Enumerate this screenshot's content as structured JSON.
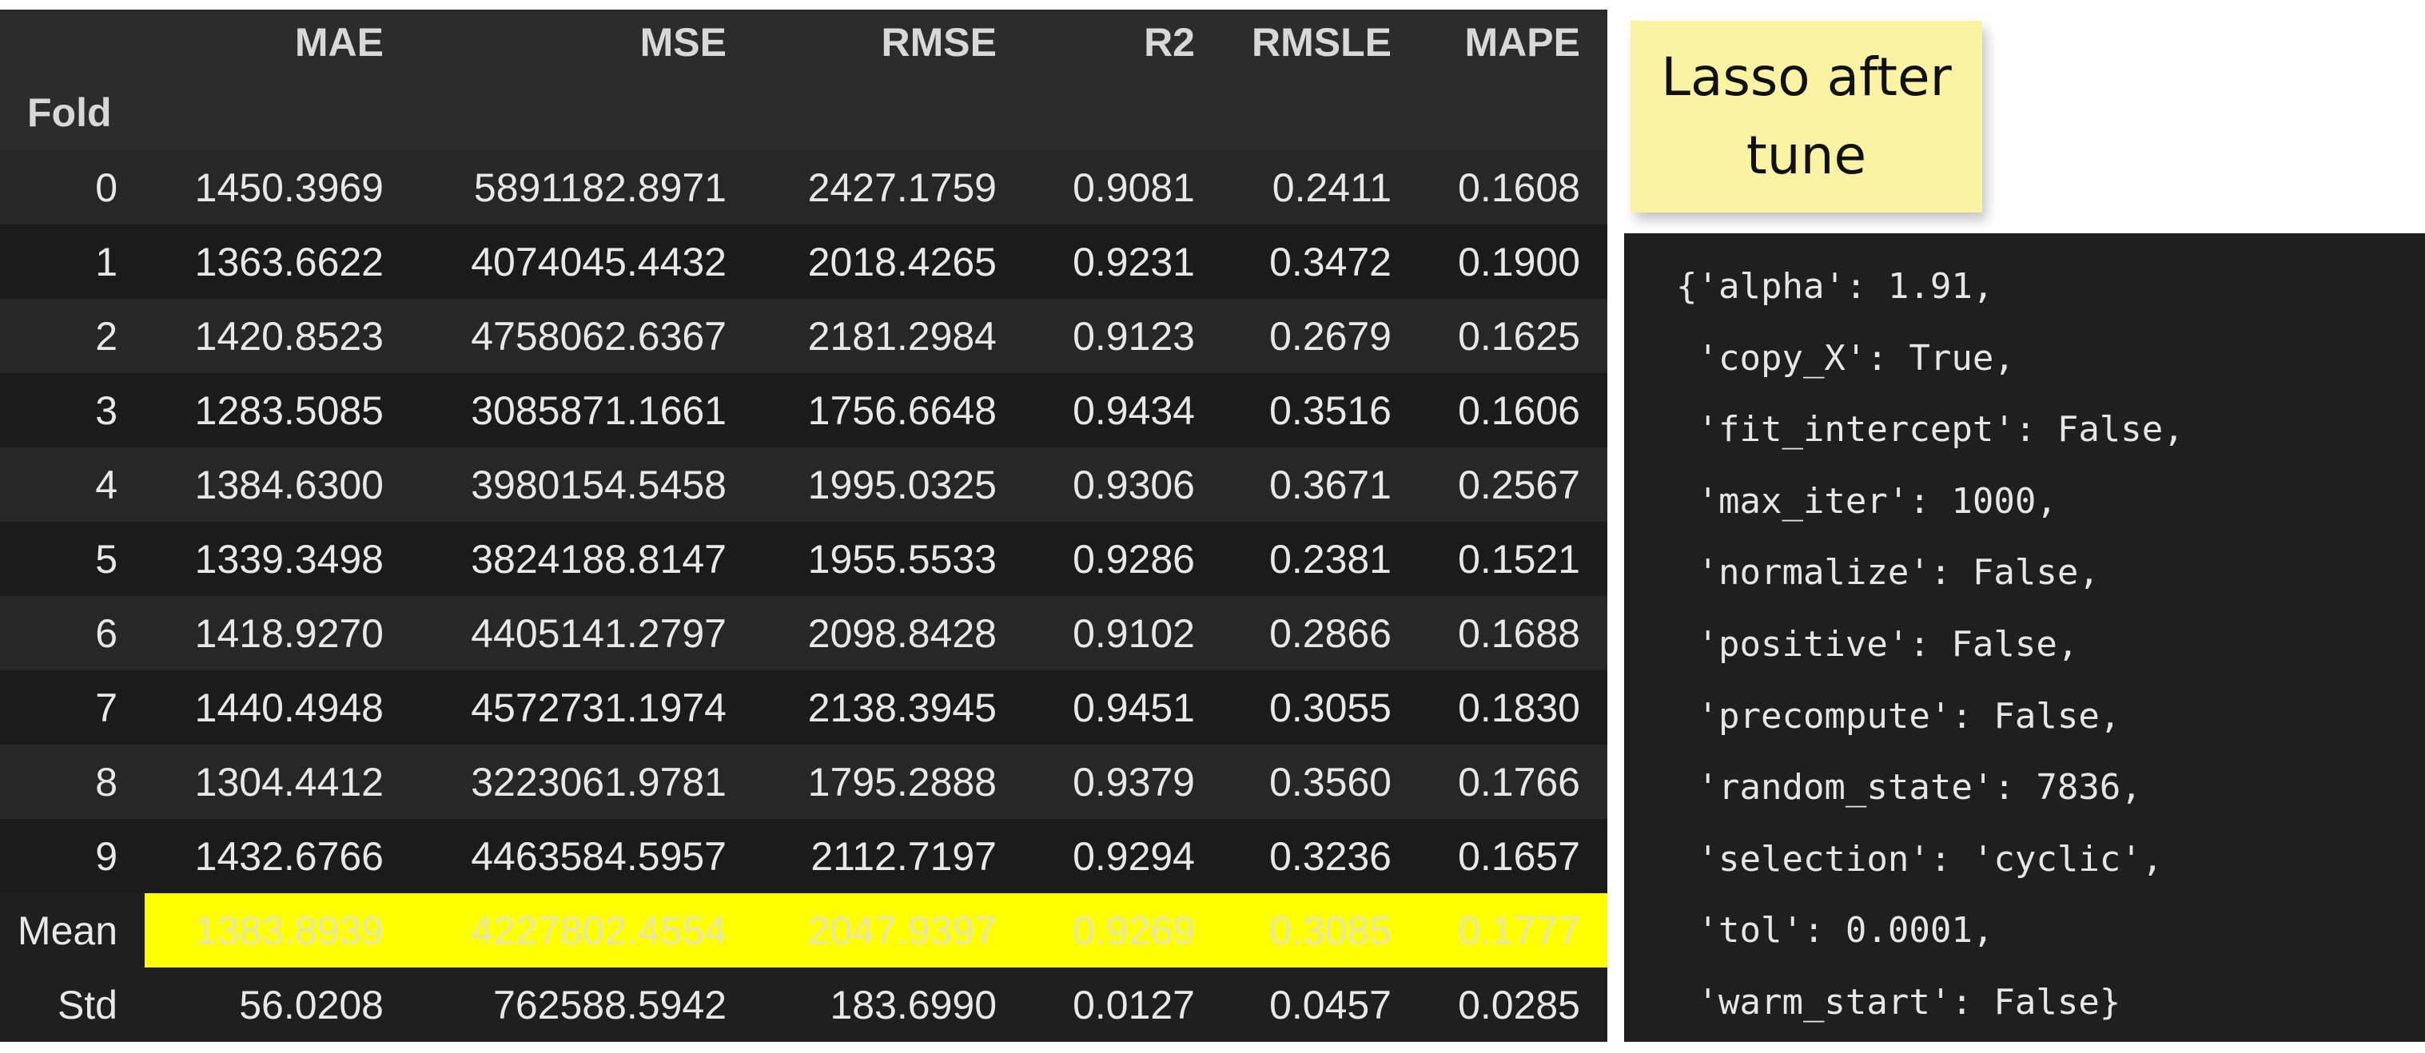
{
  "table": {
    "columns": [
      "MAE",
      "MSE",
      "RMSE",
      "R2",
      "RMSLE",
      "MAPE"
    ],
    "index_name": "Fold",
    "rows": [
      {
        "index": "0",
        "values": [
          "1450.3969",
          "5891182.8971",
          "2427.1759",
          "0.9081",
          "0.2411",
          "0.1608"
        ]
      },
      {
        "index": "1",
        "values": [
          "1363.6622",
          "4074045.4432",
          "2018.4265",
          "0.9231",
          "0.3472",
          "0.1900"
        ]
      },
      {
        "index": "2",
        "values": [
          "1420.8523",
          "4758062.6367",
          "2181.2984",
          "0.9123",
          "0.2679",
          "0.1625"
        ]
      },
      {
        "index": "3",
        "values": [
          "1283.5085",
          "3085871.1661",
          "1756.6648",
          "0.9434",
          "0.3516",
          "0.1606"
        ]
      },
      {
        "index": "4",
        "values": [
          "1384.6300",
          "3980154.5458",
          "1995.0325",
          "0.9306",
          "0.3671",
          "0.2567"
        ]
      },
      {
        "index": "5",
        "values": [
          "1339.3498",
          "3824188.8147",
          "1955.5533",
          "0.9286",
          "0.2381",
          "0.1521"
        ]
      },
      {
        "index": "6",
        "values": [
          "1418.9270",
          "4405141.2797",
          "2098.8428",
          "0.9102",
          "0.2866",
          "0.1688"
        ]
      },
      {
        "index": "7",
        "values": [
          "1440.4948",
          "4572731.1974",
          "2138.3945",
          "0.9451",
          "0.3055",
          "0.1830"
        ]
      },
      {
        "index": "8",
        "values": [
          "1304.4412",
          "3223061.9781",
          "1795.2888",
          "0.9379",
          "0.3560",
          "0.1766"
        ]
      },
      {
        "index": "9",
        "values": [
          "1432.6766",
          "4463584.5957",
          "2112.7197",
          "0.9294",
          "0.3236",
          "0.1657"
        ]
      },
      {
        "index": "Mean",
        "values": [
          "1383.8939",
          "4227802.4554",
          "2047.9397",
          "0.9269",
          "0.3085",
          "0.1777"
        ]
      },
      {
        "index": "Std",
        "values": [
          "56.0208",
          "762588.5942",
          "183.6990",
          "0.0127",
          "0.0457",
          "0.0285"
        ]
      }
    ],
    "highlight_row": "Mean",
    "highlight_color": "#ffff00"
  },
  "note": {
    "text": "Lasso after tune",
    "color": "#faf3a3"
  },
  "params": {
    "lines": [
      "{'alpha': 1.91,",
      " 'copy_X': True,",
      " 'fit_intercept': False,",
      " 'max_iter': 1000,",
      " 'normalize': False,",
      " 'positive': False,",
      " 'precompute': False,",
      " 'random_state': 7836,",
      " 'selection': 'cyclic',",
      " 'tol': 0.0001,",
      " 'warm_start': False}"
    ]
  }
}
